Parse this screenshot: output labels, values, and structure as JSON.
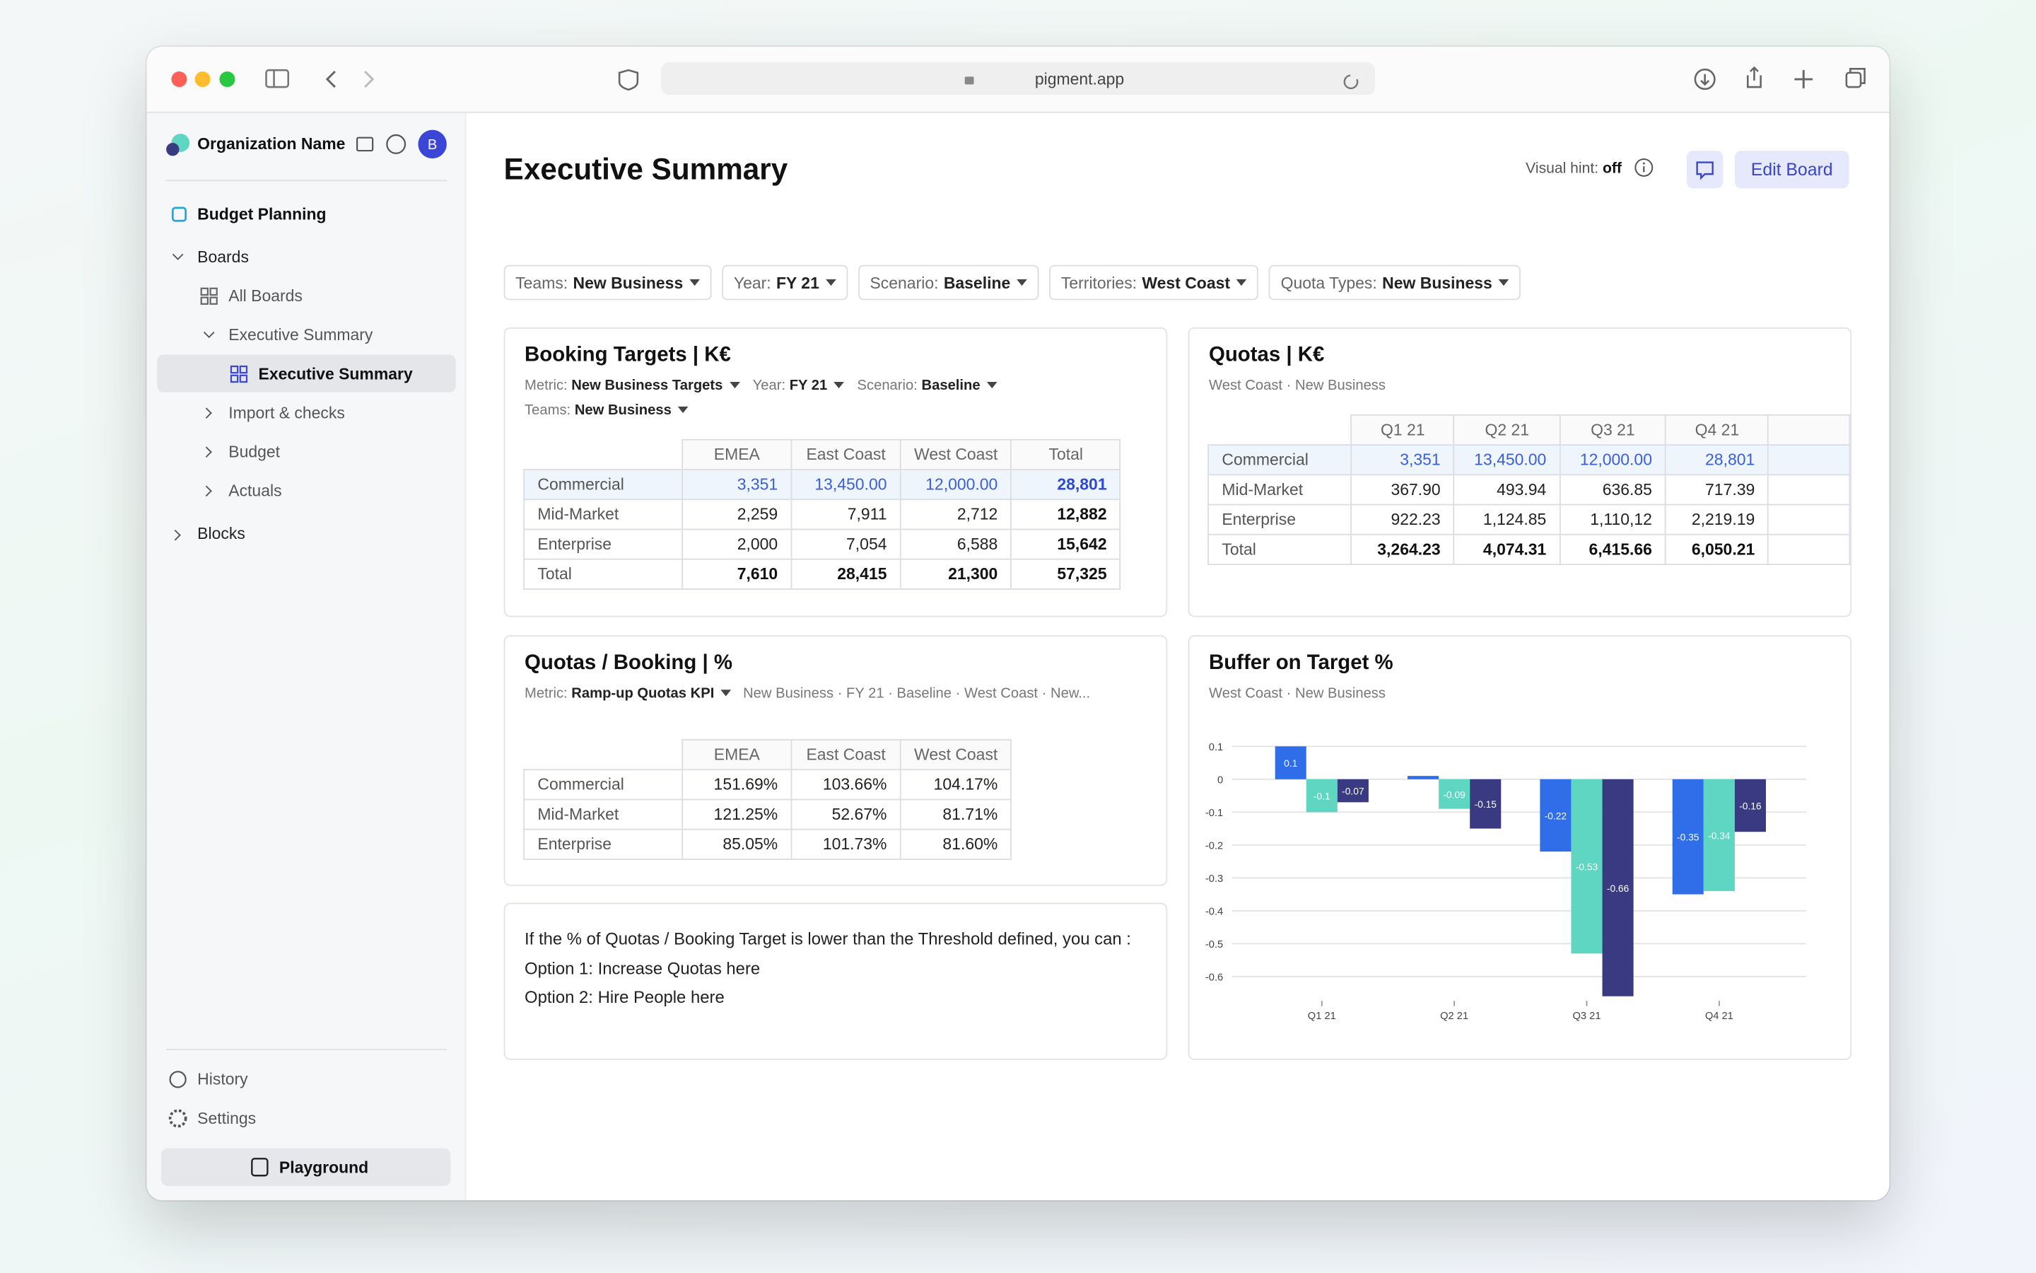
{
  "browser": {
    "url": "pigment.app"
  },
  "sidebar": {
    "org_name": "Organization Name",
    "avatar": "B",
    "app": "Budget Planning",
    "boards": "Boards",
    "all_boards": "All Boards",
    "folder": "Executive Summary",
    "selected": "Executive Summary",
    "import": "Import & checks",
    "budget": "Budget",
    "actuals": "Actuals",
    "blocks": "Blocks",
    "history": "History",
    "settings": "Settings",
    "playground": "Playground"
  },
  "header": {
    "title": "Executive Summary",
    "visual_hint_label": "Visual hint:",
    "visual_hint_value": "off",
    "edit": "Edit Board"
  },
  "filters": [
    {
      "label": "Teams:",
      "value": "New Business"
    },
    {
      "label": "Year:",
      "value": "FY 21"
    },
    {
      "label": "Scenario:",
      "value": "Baseline"
    },
    {
      "label": "Territories:",
      "value": "West Coast"
    },
    {
      "label": "Quota Types:",
      "value": "New Business"
    }
  ],
  "booking": {
    "title": "Booking Targets | K€",
    "filters": [
      {
        "label": "Metric:",
        "value": "New Business Targets"
      },
      {
        "label": "Year:",
        "value": "FY 21"
      },
      {
        "label": "Scenario:",
        "value": "Baseline"
      },
      {
        "label": "Teams:",
        "value": "New Business"
      }
    ],
    "columns": [
      "EMEA",
      "East Coast",
      "West Coast",
      "Total"
    ],
    "rows": [
      [
        "Commercial",
        "3,351",
        "13,450.00",
        "12,000.00",
        "28,801"
      ],
      [
        "Mid-Market",
        "2,259",
        "7,911",
        "2,712",
        "12,882"
      ],
      [
        "Enterprise",
        "2,000",
        "7,054",
        "6,588",
        "15,642"
      ],
      [
        "Total",
        "7,610",
        "28,415",
        "21,300",
        "57,325"
      ]
    ]
  },
  "quotas": {
    "title": "Quotas | K€",
    "subtitle": "West Coast · New Business",
    "columns": [
      "Q1 21",
      "Q2 21",
      "Q3 21",
      "Q4 21"
    ],
    "rows": [
      [
        "Commercial",
        "3,351",
        "13,450.00",
        "12,000.00",
        "28,801"
      ],
      [
        "Mid-Market",
        "367.90",
        "493.94",
        "636.85",
        "717.39"
      ],
      [
        "Enterprise",
        "922.23",
        "1,124.85",
        "1,110,12",
        "2,219.19"
      ],
      [
        "Total",
        "3,264.23",
        "4,074.31",
        "6,415.66",
        "6,050.21"
      ]
    ]
  },
  "ratio": {
    "title": "Quotas / Booking | %",
    "filter_label": "Metric:",
    "filter_value": "Ramp-up Quotas KPI",
    "context": "New Business · FY 21 · Baseline · West Coast · New...",
    "columns": [
      "EMEA",
      "East Coast",
      "West Coast"
    ],
    "rows": [
      [
        "Commercial",
        "151.69%",
        "103.66%",
        "104.17%"
      ],
      [
        "Mid-Market",
        "121.25%",
        "52.67%",
        "81.71%"
      ],
      [
        "Enterprise",
        "85.05%",
        "101.73%",
        "81.60%"
      ]
    ]
  },
  "note": {
    "lines": [
      "If the % of Quotas / Booking Target is lower than the Threshold defined, you can :",
      "Option 1: Increase Quotas here",
      "Option 2: Hire People here"
    ]
  },
  "chart_data": {
    "type": "bar",
    "title": "Buffer on Target %",
    "subtitle": "West Coast · New Business",
    "categories": [
      "Q1 21",
      "Q2 21",
      "Q3 21",
      "Q4 21"
    ],
    "series": [
      {
        "color": "#2f6ee8",
        "values": [
          0.1,
          0.01,
          -0.22,
          -0.35
        ],
        "value_labels": [
          "0.1",
          null,
          "-0.22",
          "-0.35"
        ]
      },
      {
        "color": "#5fd6c2",
        "values": [
          -0.1,
          -0.09,
          -0.53,
          -0.34
        ],
        "value_labels": [
          "-0.1",
          "-0.09",
          "-0.53",
          "-0.34"
        ]
      },
      {
        "color": "#3a3a82",
        "values": [
          -0.07,
          -0.15,
          -0.66,
          -0.16
        ],
        "value_labels": [
          "-0.07",
          "-0.15",
          "-0.66",
          "-0.16"
        ]
      }
    ],
    "ylim": [
      -0.67,
      0.12
    ],
    "yticks": [
      0.1,
      0,
      -0.1,
      -0.2,
      -0.3,
      -0.4,
      -0.5,
      -0.6
    ],
    "grid": true
  }
}
